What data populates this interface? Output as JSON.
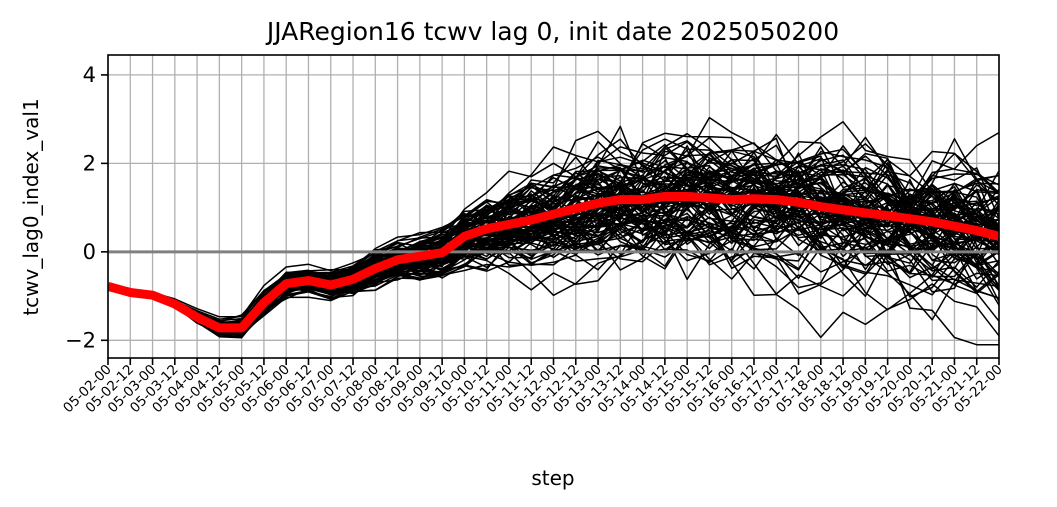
{
  "chart_data": {
    "type": "line",
    "title": "JJARegion16 tcwv lag 0, init date 2025050200",
    "xlabel": "step",
    "ylabel": "tcwv_lag0_index_val1",
    "ylim": [
      -2.4,
      4.45
    ],
    "yticks": [
      -2,
      0,
      2,
      4
    ],
    "grid": true,
    "x": [
      "05-02-00",
      "05-02-12",
      "05-03-00",
      "05-03-12",
      "05-04-00",
      "05-04-12",
      "05-05-00",
      "05-05-12",
      "05-06-00",
      "05-06-12",
      "05-07-00",
      "05-07-12",
      "05-08-00",
      "05-08-12",
      "05-09-00",
      "05-09-12",
      "05-10-00",
      "05-10-12",
      "05-11-00",
      "05-11-12",
      "05-12-00",
      "05-12-12",
      "05-13-00",
      "05-13-12",
      "05-14-00",
      "05-14-12",
      "05-15-00",
      "05-15-12",
      "05-16-00",
      "05-16-12",
      "05-17-00",
      "05-17-12",
      "05-18-00",
      "05-18-12",
      "05-19-00",
      "05-19-12",
      "05-20-00",
      "05-20-12",
      "05-21-00",
      "05-21-12",
      "05-22-00"
    ],
    "ensemble_color": "#000000",
    "ensemble_member_count": 100,
    "ensemble_spread": [
      0.0,
      0.02,
      0.04,
      0.06,
      0.09,
      0.12,
      0.14,
      0.18,
      0.2,
      0.19,
      0.2,
      0.22,
      0.26,
      0.3,
      0.35,
      0.42,
      0.5,
      0.58,
      0.66,
      0.74,
      0.82,
      0.88,
      0.92,
      0.95,
      0.98,
      1.0,
      1.02,
      1.03,
      1.05,
      1.07,
      1.08,
      1.08,
      1.1,
      1.1,
      1.12,
      1.12,
      1.13,
      1.13,
      1.14,
      1.14,
      1.15
    ],
    "series": [
      {
        "name": "",
        "color": "#ff0000",
        "values": [
          -0.78,
          -0.92,
          -0.98,
          -1.18,
          -1.48,
          -1.72,
          -1.72,
          -1.15,
          -0.72,
          -0.65,
          -0.75,
          -0.62,
          -0.38,
          -0.18,
          -0.1,
          -0.02,
          0.35,
          0.52,
          0.62,
          0.72,
          0.85,
          0.98,
          1.1,
          1.18,
          1.18,
          1.25,
          1.25,
          1.22,
          1.18,
          1.2,
          1.18,
          1.12,
          1.02,
          0.95,
          0.88,
          0.82,
          0.75,
          0.68,
          0.58,
          0.48,
          0.35
        ]
      }
    ],
    "reference_line": {
      "y": 0,
      "color": "#808080"
    },
    "grid_color": "#b0b0b0"
  }
}
